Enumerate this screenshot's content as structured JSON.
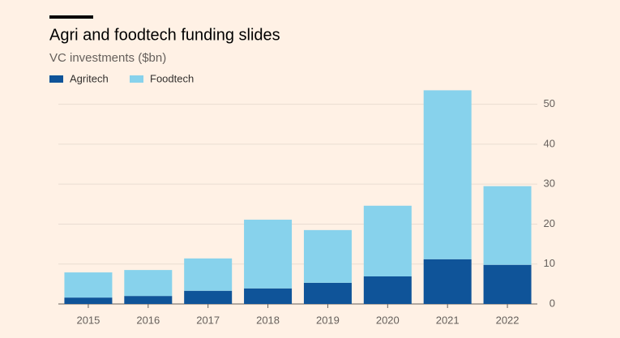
{
  "chart_data": {
    "type": "stacked-bar",
    "title": "Agri and foodtech funding slides",
    "subtitle": "VC investments ($bn)",
    "categories": [
      "2015",
      "2016",
      "2017",
      "2018",
      "2019",
      "2020",
      "2021",
      "2022"
    ],
    "series": [
      {
        "name": "Agritech",
        "color": "#0f5499",
        "values": [
          1.6,
          2.0,
          3.3,
          3.9,
          5.3,
          6.9,
          11.2,
          9.8
        ]
      },
      {
        "name": "Foodtech",
        "color": "#87d2ec",
        "values": [
          6.3,
          6.5,
          8.1,
          17.2,
          13.2,
          17.7,
          42.3,
          19.7
        ]
      }
    ],
    "ylim": [
      0,
      55
    ],
    "yticks": [
      0,
      10,
      20,
      30,
      40,
      50
    ],
    "grid": true
  }
}
